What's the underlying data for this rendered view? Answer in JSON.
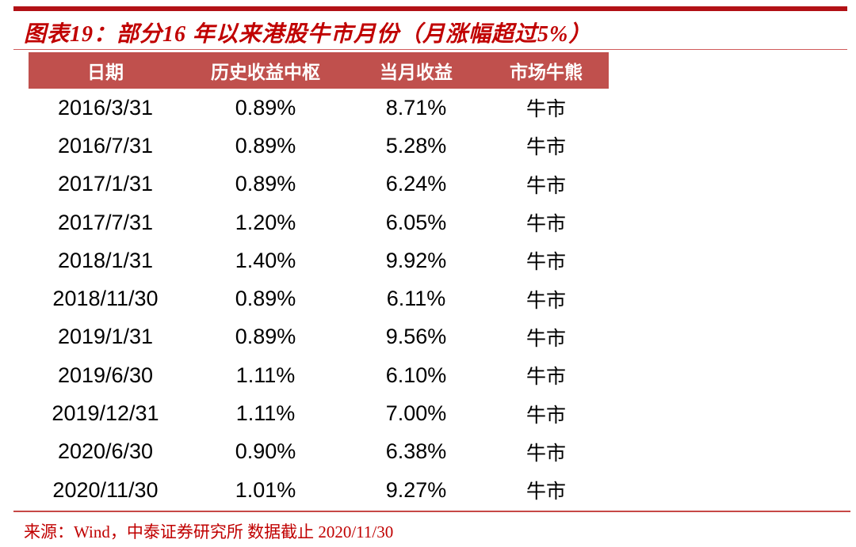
{
  "figure": {
    "title": "图表19：部分16 年以来港股牛市月份（月涨幅超过5%）",
    "source_note": "来源：Wind，中泰证券研究所 数据截止 2020/11/30"
  },
  "colors": {
    "top_bar_red": "#B21116",
    "title_red": "#C00000",
    "header_bg_red": "#C0504D",
    "header_text": "#FFFFFF",
    "body_text": "#000000",
    "divider_red": "#C74846"
  },
  "table": {
    "headers": [
      "日期",
      "历史收益中枢",
      "当月收益",
      "市场牛熊"
    ],
    "rows": [
      [
        "2016/3/31",
        "0.89%",
        "8.71%",
        "牛市"
      ],
      [
        "2016/7/31",
        "0.89%",
        "5.28%",
        "牛市"
      ],
      [
        "2017/1/31",
        "0.89%",
        "6.24%",
        "牛市"
      ],
      [
        "2017/7/31",
        "1.20%",
        "6.05%",
        "牛市"
      ],
      [
        "2018/1/31",
        "1.40%",
        "9.92%",
        "牛市"
      ],
      [
        "2018/11/30",
        "0.89%",
        "6.11%",
        "牛市"
      ],
      [
        "2019/1/31",
        "0.89%",
        "9.56%",
        "牛市"
      ],
      [
        "2019/6/30",
        "1.11%",
        "6.10%",
        "牛市"
      ],
      [
        "2019/12/31",
        "1.11%",
        "7.00%",
        "牛市"
      ],
      [
        "2020/6/30",
        "0.90%",
        "6.38%",
        "牛市"
      ],
      [
        "2020/11/30",
        "1.01%",
        "9.27%",
        "牛市"
      ]
    ]
  },
  "chart_data": {
    "type": "table",
    "title": "图表19：部分16 年以来港股牛市月份（月涨幅超过5%）",
    "columns": [
      "日期",
      "历史收益中枢",
      "当月收益",
      "市场牛熊"
    ],
    "rows": [
      {
        "date": "2016/3/31",
        "historical_return_center": "0.89%",
        "monthly_return": "8.71%",
        "market_state": "牛市"
      },
      {
        "date": "2016/7/31",
        "historical_return_center": "0.89%",
        "monthly_return": "5.28%",
        "market_state": "牛市"
      },
      {
        "date": "2017/1/31",
        "historical_return_center": "0.89%",
        "monthly_return": "6.24%",
        "market_state": "牛市"
      },
      {
        "date": "2017/7/31",
        "historical_return_center": "1.20%",
        "monthly_return": "6.05%",
        "market_state": "牛市"
      },
      {
        "date": "2018/1/31",
        "historical_return_center": "1.40%",
        "monthly_return": "9.92%",
        "market_state": "牛市"
      },
      {
        "date": "2018/11/30",
        "historical_return_center": "0.89%",
        "monthly_return": "6.11%",
        "market_state": "牛市"
      },
      {
        "date": "2019/1/31",
        "historical_return_center": "0.89%",
        "monthly_return": "9.56%",
        "market_state": "牛市"
      },
      {
        "date": "2019/6/30",
        "historical_return_center": "1.11%",
        "monthly_return": "6.10%",
        "market_state": "牛市"
      },
      {
        "date": "2019/12/31",
        "historical_return_center": "1.11%",
        "monthly_return": "7.00%",
        "market_state": "牛市"
      },
      {
        "date": "2020/6/30",
        "historical_return_center": "0.90%",
        "monthly_return": "6.38%",
        "market_state": "牛市"
      },
      {
        "date": "2020/11/30",
        "historical_return_center": "1.01%",
        "monthly_return": "9.27%",
        "market_state": "牛市"
      }
    ],
    "note": "来源：Wind，中泰证券研究所 数据截止 2020/11/30"
  }
}
